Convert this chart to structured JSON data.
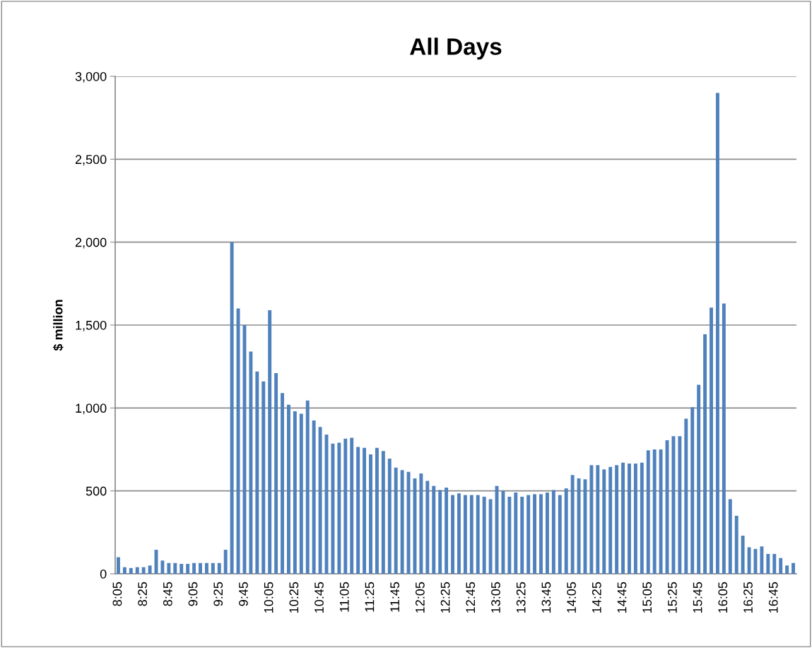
{
  "chart_data": {
    "type": "bar",
    "title": "All Days",
    "ylabel": "$ million",
    "categories": [
      "8:05",
      null,
      null,
      null,
      "8:25",
      null,
      null,
      null,
      "8:45",
      null,
      null,
      null,
      "9:05",
      null,
      null,
      null,
      "9:25",
      null,
      null,
      null,
      "9:45",
      null,
      null,
      null,
      "10:05",
      null,
      null,
      null,
      "10:25",
      null,
      null,
      null,
      "10:45",
      null,
      null,
      null,
      "11:05",
      null,
      null,
      null,
      "11:25",
      null,
      null,
      null,
      "11:45",
      null,
      null,
      null,
      "12:05",
      null,
      null,
      null,
      "12:25",
      null,
      null,
      null,
      "12:45",
      null,
      null,
      null,
      "13:05",
      null,
      null,
      null,
      "13:25",
      null,
      null,
      null,
      "13:45",
      null,
      null,
      null,
      "14:05",
      null,
      null,
      null,
      "14:25",
      null,
      null,
      null,
      "14:45",
      null,
      null,
      null,
      "15:05",
      null,
      null,
      null,
      "15:25",
      null,
      null,
      null,
      "15:45",
      null,
      null,
      null,
      "16:05",
      null,
      null,
      null,
      "16:25",
      null,
      null,
      null,
      "16:45",
      null,
      null,
      null
    ],
    "values": [
      100,
      40,
      35,
      40,
      40,
      50,
      145,
      80,
      65,
      65,
      60,
      60,
      65,
      65,
      65,
      65,
      65,
      145,
      2000,
      1600,
      1500,
      1340,
      1220,
      1160,
      1590,
      1210,
      1090,
      1020,
      980,
      965,
      1045,
      925,
      885,
      840,
      785,
      790,
      815,
      820,
      765,
      760,
      720,
      760,
      740,
      695,
      640,
      625,
      615,
      575,
      605,
      560,
      530,
      505,
      520,
      475,
      485,
      475,
      475,
      475,
      465,
      450,
      530,
      500,
      465,
      490,
      465,
      475,
      480,
      480,
      490,
      505,
      475,
      515,
      595,
      575,
      570,
      655,
      655,
      630,
      645,
      655,
      670,
      665,
      665,
      670,
      745,
      750,
      750,
      805,
      830,
      830,
      935,
      1005,
      1140,
      1445,
      1605,
      2900,
      1630,
      450,
      350,
      230,
      160,
      150,
      165,
      120,
      120,
      95,
      50,
      65
    ],
    "color": "#4f81bd",
    "ylim": [
      0,
      3000
    ],
    "yticks": [
      0,
      500,
      {
        "value": 1000,
        "label": "1,000"
      },
      {
        "value": 1500,
        "label": "1,500"
      },
      {
        "value": 2000,
        "label": "2,000"
      },
      {
        "value": 2500,
        "label": "2,500"
      },
      {
        "value": 3000,
        "label": "3,000"
      }
    ],
    "grid": "y"
  }
}
